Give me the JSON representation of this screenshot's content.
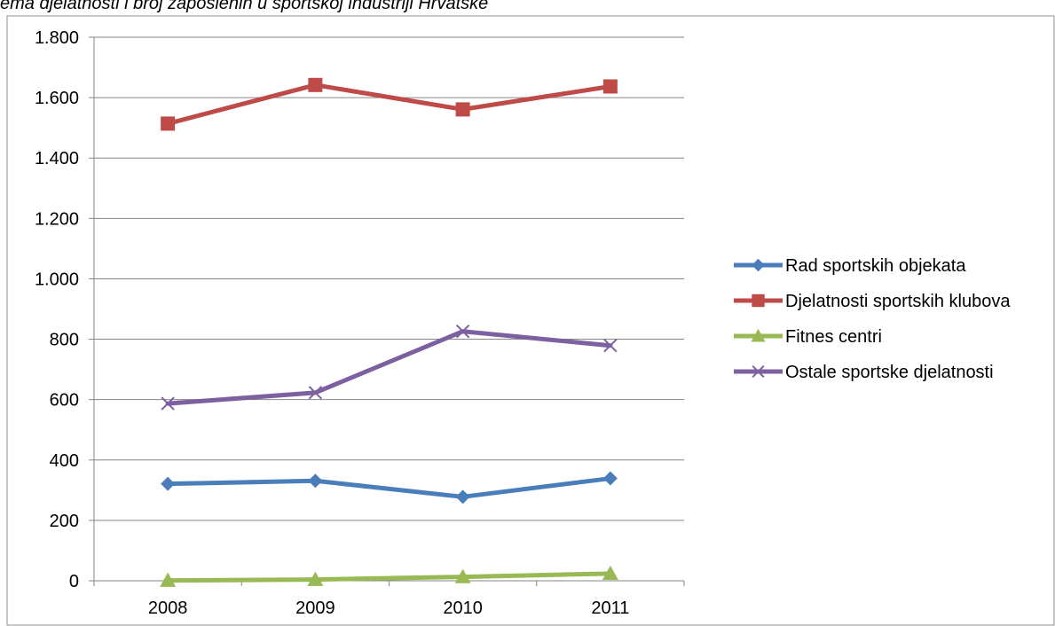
{
  "caption": "ema djelatnosti i broj zaposlenih u sportskoj industriji Hrvatske",
  "chart_data": {
    "type": "line",
    "categories": [
      "2008",
      "2009",
      "2010",
      "2011"
    ],
    "ylim": [
      0,
      1800
    ],
    "yticks": [
      0,
      200,
      400,
      600,
      800,
      1000,
      1200,
      1400,
      1600,
      1800
    ],
    "ytick_labels": [
      "0",
      "200",
      "400",
      "600",
      "800",
      "1.000",
      "1.200",
      "1.400",
      "1.600",
      "1.800"
    ],
    "grid": true,
    "legend_position": "right",
    "series": [
      {
        "name": "Rad sportskih objekata",
        "values": [
          321,
          331,
          278,
          339
        ],
        "color": "#4a7ebb",
        "marker": "diamond"
      },
      {
        "name": "Djelatnosti sportskih klubova",
        "values": [
          1514,
          1642,
          1561,
          1637
        ],
        "color": "#be4b48",
        "marker": "square"
      },
      {
        "name": "Fitnes centri",
        "values": [
          1,
          4,
          13,
          24
        ],
        "color": "#98b954",
        "marker": "triangle"
      },
      {
        "name": "Ostale sportske djelatnosti",
        "values": [
          587,
          623,
          826,
          779
        ],
        "color": "#7d60a0",
        "marker": "x"
      }
    ]
  }
}
